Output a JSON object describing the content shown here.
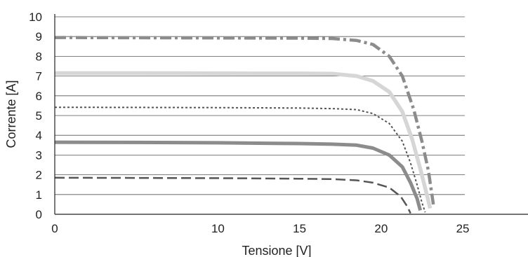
{
  "chart_data": {
    "type": "line",
    "title": "",
    "xlabel": "Tensione [V]",
    "ylabel": "Corrente [A]",
    "xlim": [
      0,
      29
    ],
    "ylim": [
      0,
      10
    ],
    "x_ticks": [
      0,
      10,
      15,
      20,
      25
    ],
    "y_ticks": [
      0,
      1,
      2,
      3,
      4,
      5,
      6,
      7,
      8,
      9,
      10
    ],
    "grid": "horizontal",
    "series": [
      {
        "color": "#8c8c8c",
        "style": "dash-dot",
        "points": [
          [
            0,
            8.95
          ],
          [
            5,
            8.94
          ],
          [
            10,
            8.93
          ],
          [
            15,
            8.92
          ],
          [
            17,
            8.9
          ],
          [
            18.5,
            8.8
          ],
          [
            19.5,
            8.6
          ],
          [
            20.5,
            8.0
          ],
          [
            21.3,
            7.0
          ],
          [
            22,
            5.3
          ],
          [
            22.5,
            3.7
          ],
          [
            22.9,
            2.2
          ],
          [
            23.2,
            0.5
          ]
        ]
      },
      {
        "color": "#d6d6d6",
        "style": "solid",
        "points": [
          [
            0,
            7.15
          ],
          [
            5,
            7.15
          ],
          [
            10,
            7.14
          ],
          [
            15,
            7.13
          ],
          [
            17,
            7.12
          ],
          [
            18.5,
            7.0
          ],
          [
            19.5,
            6.75
          ],
          [
            20.5,
            6.2
          ],
          [
            21.3,
            5.2
          ],
          [
            21.9,
            3.8
          ],
          [
            22.4,
            2.3
          ],
          [
            22.8,
            1.0
          ],
          [
            23.0,
            0.3
          ]
        ]
      },
      {
        "color": "#555555",
        "style": "dotted",
        "points": [
          [
            0,
            5.42
          ],
          [
            5,
            5.41
          ],
          [
            10,
            5.4
          ],
          [
            15,
            5.38
          ],
          [
            17,
            5.35
          ],
          [
            18.5,
            5.3
          ],
          [
            19.5,
            5.1
          ],
          [
            20.5,
            4.6
          ],
          [
            21.3,
            3.7
          ],
          [
            21.8,
            2.6
          ],
          [
            22.2,
            1.5
          ],
          [
            22.5,
            0.6
          ],
          [
            22.7,
            0.1
          ]
        ]
      },
      {
        "color": "#8c8c8c",
        "style": "solid",
        "points": [
          [
            0,
            3.65
          ],
          [
            5,
            3.64
          ],
          [
            10,
            3.62
          ],
          [
            15,
            3.58
          ],
          [
            17,
            3.55
          ],
          [
            18.5,
            3.5
          ],
          [
            19.5,
            3.35
          ],
          [
            20.5,
            3.0
          ],
          [
            21.3,
            2.4
          ],
          [
            21.8,
            1.6
          ],
          [
            22.2,
            0.8
          ],
          [
            22.4,
            0.2
          ]
        ]
      },
      {
        "color": "#555555",
        "style": "dashed",
        "points": [
          [
            0,
            1.85
          ],
          [
            5,
            1.84
          ],
          [
            10,
            1.83
          ],
          [
            15,
            1.8
          ],
          [
            17,
            1.78
          ],
          [
            18.5,
            1.72
          ],
          [
            19.5,
            1.6
          ],
          [
            20.5,
            1.35
          ],
          [
            21.2,
            0.9
          ],
          [
            21.6,
            0.4
          ],
          [
            21.8,
            0.05
          ]
        ]
      }
    ]
  }
}
